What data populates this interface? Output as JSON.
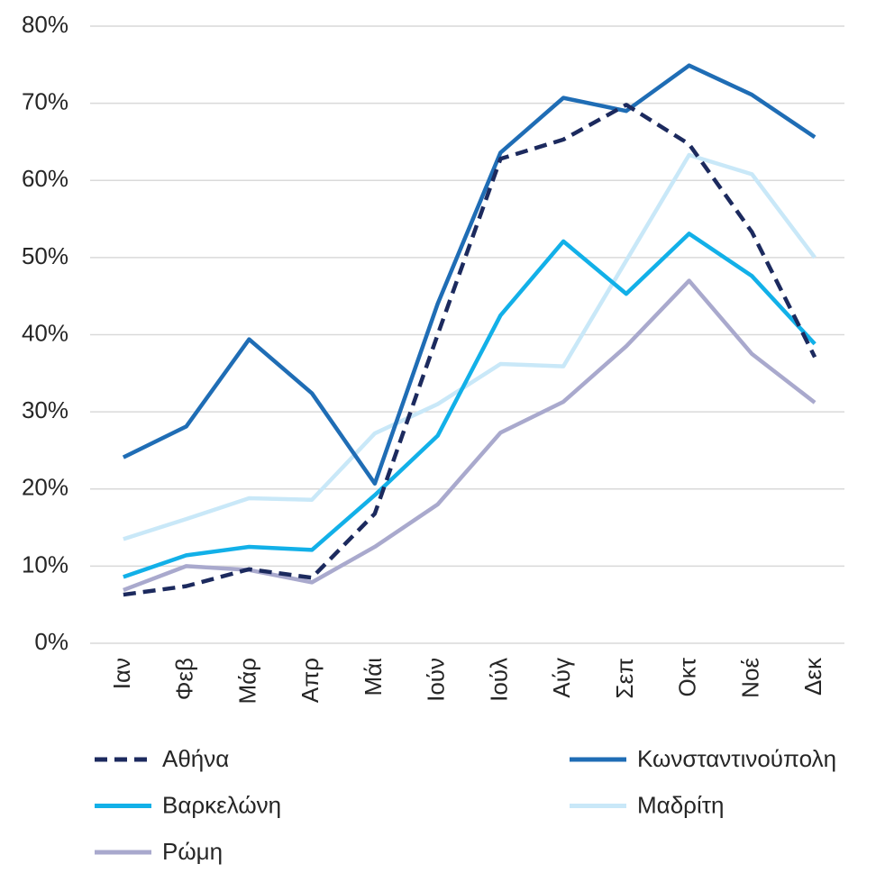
{
  "chart_data": {
    "type": "line",
    "categories": [
      "Ιαν",
      "Φεβ",
      "Μάρ",
      "Απρ",
      "Μάι",
      "Ιούν",
      "Ιούλ",
      "Αύγ",
      "Σεπ",
      "Οκτ",
      "Νοέ",
      "Δεκ"
    ],
    "series": [
      {
        "name": "Αθήνα",
        "color": "#1c2a5e",
        "dash": "dashed",
        "values": [
          6.3,
          7.4,
          9.6,
          8.5,
          16.8,
          40,
          62.8,
          65.3,
          69.8,
          64.7,
          53.3,
          37.1
        ]
      },
      {
        "name": "Κωνσταντινούπολη",
        "color": "#1f6db5",
        "values": [
          24.1,
          28.1,
          39.4,
          32.4,
          20.7,
          44,
          63.6,
          70.7,
          69,
          74.9,
          71.1,
          65.6
        ]
      },
      {
        "name": "Βαρκελώνη",
        "color": "#12b0e8",
        "values": [
          8.6,
          11.4,
          12.5,
          12.1,
          19.2,
          26.9,
          42.5,
          52.1,
          45.3,
          53.1,
          47.6,
          38.8
        ]
      },
      {
        "name": "Μαδρίτη",
        "color": "#c9e8f8",
        "values": [
          13.5,
          16.1,
          18.8,
          18.6,
          27.2,
          31,
          36.2,
          35.9,
          49.6,
          63.3,
          60.8,
          50
        ]
      },
      {
        "name": "Ρώμη",
        "color": "#a9a9cd",
        "values": [
          6.9,
          10,
          9.5,
          7.9,
          12.5,
          18,
          27.3,
          31.3,
          38.5,
          47,
          37.5,
          31.2
        ]
      }
    ],
    "ylim": [
      0,
      80
    ],
    "yticks": [
      {
        "value": 0,
        "label": "0%"
      },
      {
        "value": 10,
        "label": "10%"
      },
      {
        "value": 20,
        "label": "20%"
      },
      {
        "value": 30,
        "label": "30%"
      },
      {
        "value": 40,
        "label": "40%"
      },
      {
        "value": 50,
        "label": "50%"
      },
      {
        "value": 60,
        "label": "60%"
      },
      {
        "value": 70,
        "label": "70%"
      },
      {
        "value": 80,
        "label": "80%"
      }
    ],
    "grid": true,
    "legend": "bottom"
  }
}
